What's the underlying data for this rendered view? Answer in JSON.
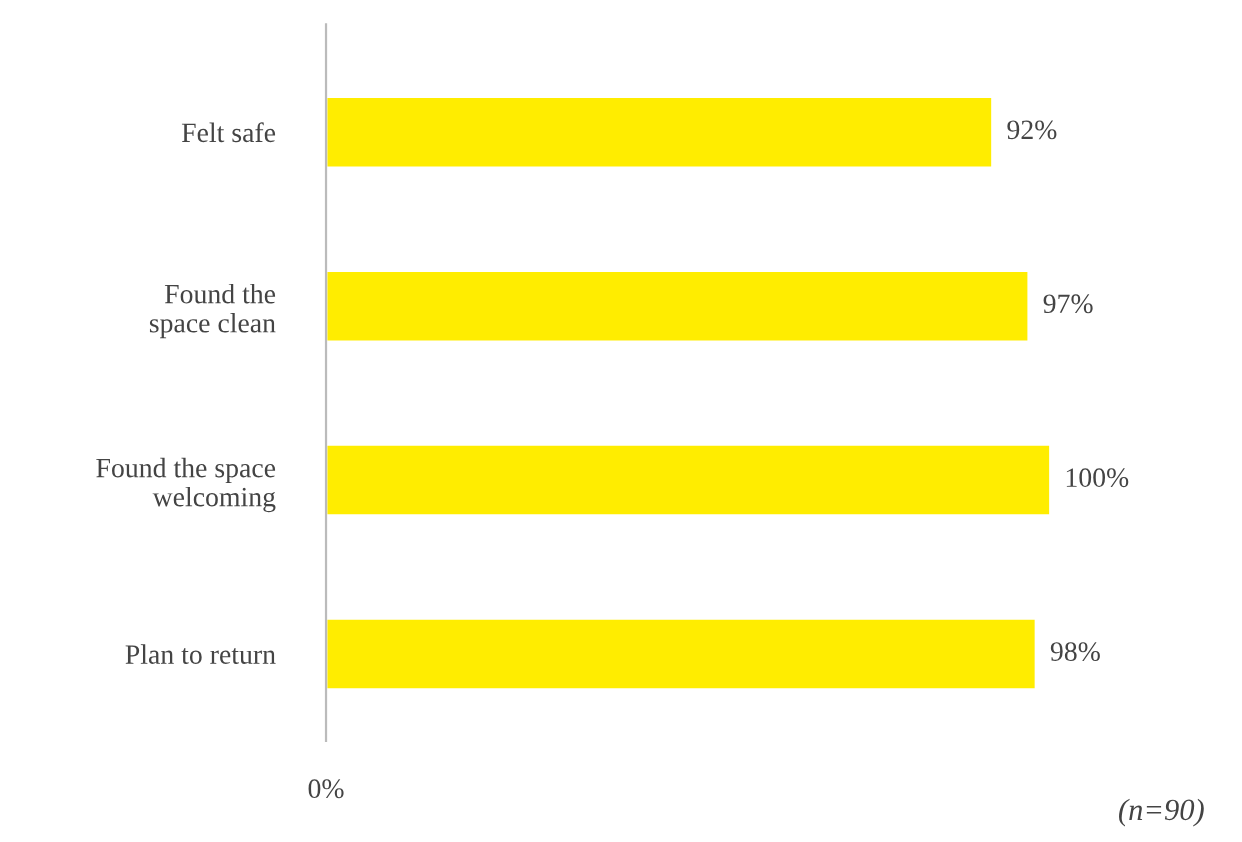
{
  "chart_data": {
    "type": "bar",
    "orientation": "horizontal",
    "categories": [
      "Felt safe",
      "Found the\nspace clean",
      "Found the space\nwelcoming",
      "Plan to return"
    ],
    "values": [
      92,
      97,
      100,
      98
    ],
    "value_labels": [
      "92%",
      "97%",
      "100%",
      "98%"
    ],
    "color": "#ffed00",
    "grid": false,
    "legend": false,
    "annotations": [
      "0%",
      "(n=90)"
    ]
  }
}
